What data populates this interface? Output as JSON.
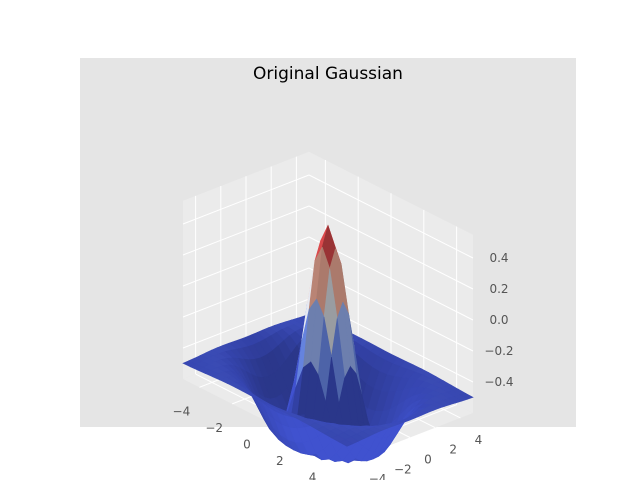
{
  "chart_data": {
    "type": "surface",
    "title": "Original Gaussian",
    "function": "exp(-(x^2+y^2)/8) * cos(sqrt(x^2+y^2)) - 0.5",
    "x": {
      "range": [
        -5,
        5
      ],
      "ticks": [
        -4,
        -2,
        0,
        2,
        4
      ],
      "tick_labels": [
        "−4",
        "−2",
        "0",
        "2",
        "4"
      ]
    },
    "y": {
      "range": [
        -5,
        5
      ],
      "ticks": [
        -4,
        -2,
        0,
        2,
        4
      ],
      "tick_labels": [
        "−4",
        "−2",
        "0",
        "2",
        "4"
      ]
    },
    "z": {
      "range": [
        -0.5,
        0.5
      ],
      "ticks": [
        0.4,
        0.2,
        0.0,
        -0.2,
        -0.4
      ],
      "tick_labels": [
        "0.4",
        "0.2",
        "0.0",
        "−0.2",
        "−0.4"
      ]
    },
    "grid": true,
    "colormap": "coolwarm",
    "style": "ggplot",
    "colors": {
      "figure_bg": "#ffffff",
      "axes_bg": "#e5e5e5",
      "pane": "#ebebeb",
      "grid": "#ffffff",
      "tick_text": "#555555"
    }
  }
}
